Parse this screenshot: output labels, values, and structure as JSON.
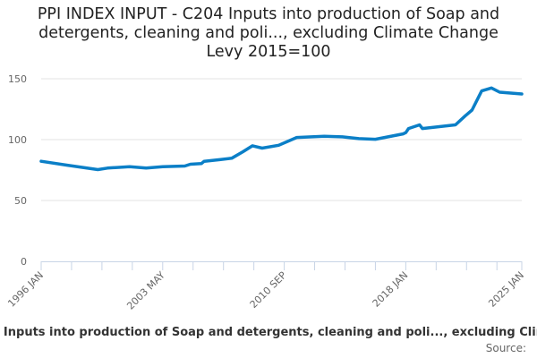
{
  "chart_data": {
    "type": "line",
    "title": "PPI INDEX INPUT - C204 Inputs into production of Soap and detergents, cleaning and poli..., excluding Climate Change Levy 2015=100",
    "title_lines": [
      "PPI INDEX INPUT - C204 Inputs into production of Soap and",
      "detergents, cleaning and poli..., excluding Climate Change",
      "Levy 2015=100"
    ],
    "xlabel": "",
    "ylabel": "",
    "xlim": [
      "1996-01",
      "2025-01"
    ],
    "ylim": [
      0,
      150
    ],
    "y_ticks": [
      0,
      50,
      100,
      150
    ],
    "x_tick_labels": [
      "1996 JAN",
      "2003 MAY",
      "2010 SEP",
      "2018 JAN",
      "2025 JAN"
    ],
    "x_tick_dates": [
      "1996-01",
      "2003-05",
      "2010-09",
      "2018-01",
      "2025-01"
    ],
    "grid": true,
    "line_color": "#0b7fc7",
    "series": [
      {
        "points": [
          [
            "1996-01",
            82.2
          ],
          [
            "1997-08",
            79.0
          ],
          [
            "1999-06",
            75.4
          ],
          [
            "2000-01",
            76.6
          ],
          [
            "2001-05",
            77.8
          ],
          [
            "2002-05",
            76.6
          ],
          [
            "2003-05",
            77.8
          ],
          [
            "2004-09",
            78.3
          ],
          [
            "2005-01",
            79.8
          ],
          [
            "2005-09",
            80.3
          ],
          [
            "2005-11",
            82.2
          ],
          [
            "2006-11",
            83.7
          ],
          [
            "2007-07",
            84.7
          ],
          [
            "2008-03",
            90.0
          ],
          [
            "2008-10",
            94.9
          ],
          [
            "2009-05",
            93.0
          ],
          [
            "2010-05",
            95.4
          ],
          [
            "2011-06",
            101.8
          ],
          [
            "2013-02",
            102.8
          ],
          [
            "2014-03",
            102.3
          ],
          [
            "2015-03",
            100.8
          ],
          [
            "2016-03",
            100.3
          ],
          [
            "2017-11",
            104.7
          ],
          [
            "2018-01",
            105.7
          ],
          [
            "2018-03",
            109.1
          ],
          [
            "2018-11",
            112.1
          ],
          [
            "2019-01",
            109.1
          ],
          [
            "2021-01",
            112.1
          ],
          [
            "2021-08",
            119.4
          ],
          [
            "2022-01",
            124.3
          ],
          [
            "2022-08",
            140.0
          ],
          [
            "2023-03",
            142.4
          ],
          [
            "2023-09",
            139.0
          ],
          [
            "2025-01",
            137.5
          ]
        ]
      }
    ]
  },
  "footer": {
    "series_label": "- Inputs into production of Soap and detergents, cleaning and poli..., excluding Climat",
    "source_label": "Source:"
  }
}
